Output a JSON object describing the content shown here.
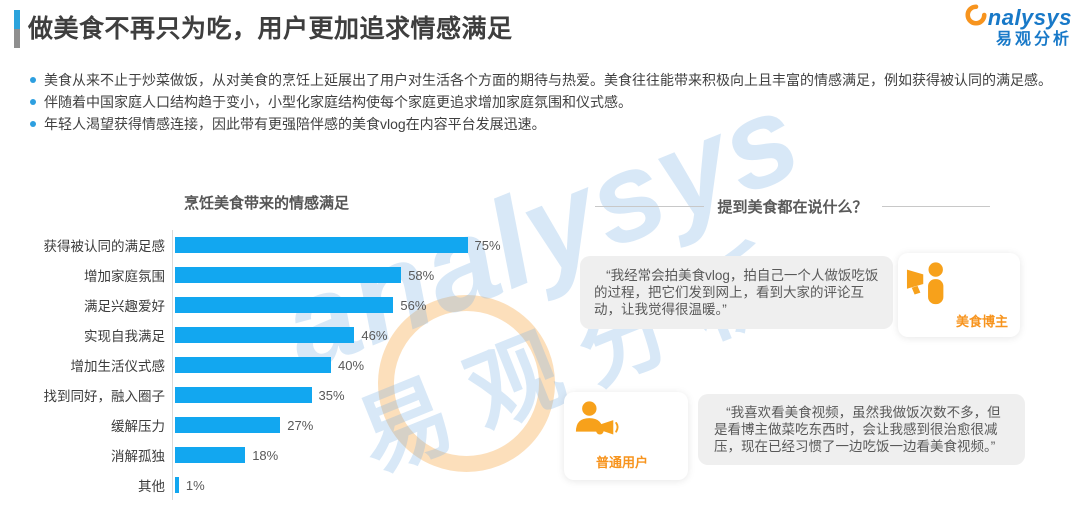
{
  "header": {
    "title": "做美食不再只为吃，用户更加追求情感满足",
    "logo": {
      "brand_en": "nalysys",
      "brand_cn": "易观分析"
    }
  },
  "bullets": [
    "美食从来不止于炒菜做饭，从对美食的烹饪上延展出了用户对生活各个方面的期待与热爱。美食往往能带来积极向上且丰富的情感满足，例如获得被认同的满足感。",
    "伴随着中国家庭人口结构趋于变小，小型化家庭结构使每个家庭更追求增加家庭氛围和仪式感。",
    "年轻人渴望获得情感连接，因此带有更强陪伴感的美食vlog在内容平台发展迅速。"
  ],
  "chart_data": {
    "type": "bar",
    "orientation": "horizontal",
    "title": "烹饪美食带来的情感满足",
    "categories": [
      "获得被认同的满足感",
      "增加家庭氛围",
      "满足兴趣爱好",
      "实现自我满足",
      "增加生活仪式感",
      "找到同好，融入圈子",
      "缓解压力",
      "消解孤独",
      "其他"
    ],
    "values": [
      75,
      58,
      56,
      46,
      40,
      35,
      27,
      18,
      1
    ],
    "unit": "%",
    "xlim": [
      0,
      100
    ],
    "grid": false,
    "bar_color": "#12a7f0"
  },
  "right_panel": {
    "heading": "提到美食都在说什么？",
    "quotes": [
      {
        "text": "“我经常会拍美食vlog，拍自己一个人做饭吃饭的过程，把它们发到网上，看到大家的评论互动，让我觉得很温暖。”",
        "role": "美食博主",
        "icon": "blogger-megaphone-icon"
      },
      {
        "text": "“我喜欢看美食视频，虽然我做饭次数不多，但是看博主做菜吃东西时，会让我感到很治愈很减压，现在已经习惯了一边吃饭一边看美食视频。”",
        "role": "普通用户",
        "icon": "user-megaphone-icon"
      }
    ]
  },
  "watermark": {
    "brand_en": "analysys",
    "brand_cn": "易观分析"
  },
  "colors": {
    "bar_blue": "#12a7f0",
    "accent_blue": "#2ba3dc",
    "accent_gray": "#8f8f8f",
    "logo_blue": "#1879c8",
    "orange": "#f7941e",
    "quote_bg": "#efefef"
  }
}
